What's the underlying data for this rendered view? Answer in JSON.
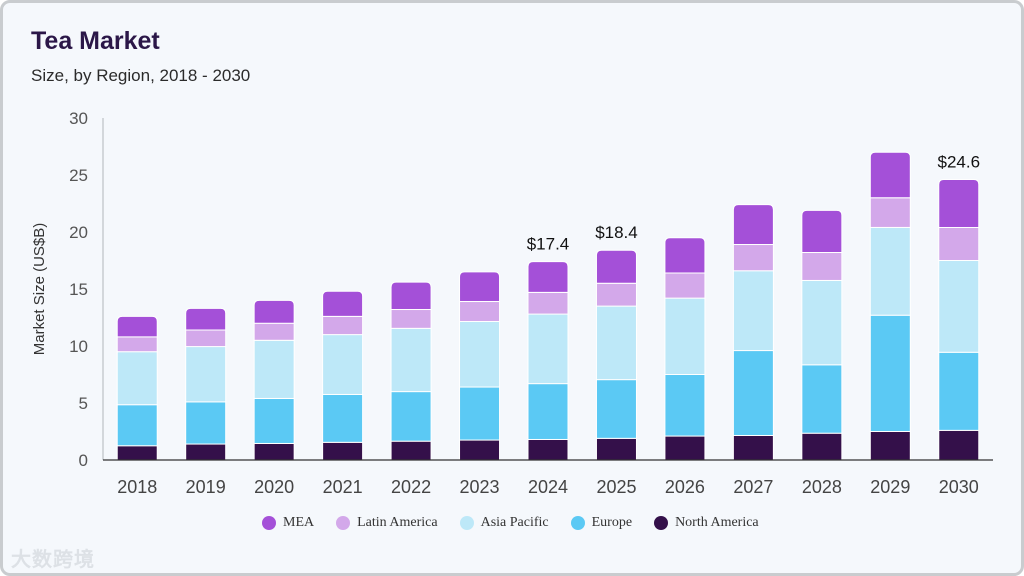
{
  "header": {
    "title": "Tea Market",
    "subtitle": "Size, by Region, 2018 - 2030"
  },
  "watermark": "大数跨境",
  "chart_data": {
    "type": "bar",
    "stacked": true,
    "title": "Tea Market",
    "subtitle": "Size, by Region, 2018 - 2030",
    "xlabel": "",
    "ylabel": "Market Size (US$B)",
    "ylim": [
      0,
      30
    ],
    "yticks": [
      0,
      5,
      10,
      15,
      20,
      25,
      30
    ],
    "categories": [
      "2018",
      "2019",
      "2020",
      "2021",
      "2022",
      "2023",
      "2024",
      "2025",
      "2026",
      "2027",
      "2028",
      "2029",
      "2030"
    ],
    "series": [
      {
        "name": "North America",
        "color": "#34104a",
        "values": [
          1.25,
          1.4,
          1.45,
          1.55,
          1.65,
          1.75,
          1.8,
          1.9,
          2.1,
          2.15,
          2.35,
          2.5,
          2.6
        ]
      },
      {
        "name": "Europe",
        "color": "#5bc9f4",
        "values": [
          3.6,
          3.7,
          3.95,
          4.2,
          4.35,
          4.65,
          4.9,
          5.15,
          5.4,
          7.45,
          6.0,
          10.2,
          6.85
        ]
      },
      {
        "name": "Asia Pacific",
        "color": "#bde8f8",
        "values": [
          4.65,
          4.85,
          5.1,
          5.25,
          5.55,
          5.75,
          6.1,
          6.45,
          6.7,
          7.0,
          7.4,
          7.7,
          8.05
        ]
      },
      {
        "name": "Latin America",
        "color": "#d3a8ea",
        "values": [
          1.3,
          1.45,
          1.5,
          1.6,
          1.65,
          1.75,
          1.9,
          2.0,
          2.2,
          2.3,
          2.45,
          2.6,
          2.9
        ]
      },
      {
        "name": "MEA",
        "color": "#a450d8",
        "values": [
          1.8,
          1.9,
          2.0,
          2.2,
          2.4,
          2.6,
          2.7,
          2.9,
          3.1,
          3.5,
          3.7,
          4.0,
          4.2
        ]
      }
    ],
    "data_labels": [
      {
        "category": "2024",
        "text": "$17.4"
      },
      {
        "category": "2025",
        "text": "$18.4"
      },
      {
        "category": "2030",
        "text": "$24.6"
      }
    ],
    "legend": {
      "placement": "bottom",
      "order": [
        "MEA",
        "Latin America",
        "Asia Pacific",
        "Europe",
        "North America"
      ]
    },
    "grid": false
  }
}
